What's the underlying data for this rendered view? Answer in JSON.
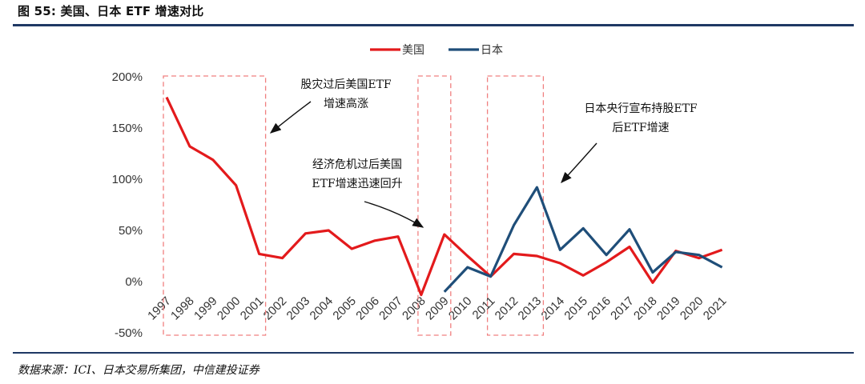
{
  "figure": {
    "title": "图 55: 美国、日本 ETF 增速对比",
    "source": "数据来源：ICI、日本交易所集团，中信建投证券"
  },
  "chart_data": {
    "type": "line",
    "title": "",
    "xlabel": "",
    "ylabel": "",
    "ylim": [
      -50,
      200
    ],
    "yticks": [
      "-50%",
      "0%",
      "50%",
      "100%",
      "150%",
      "200%"
    ],
    "ytick_values": [
      -50,
      0,
      50,
      100,
      150,
      200
    ],
    "grid": false,
    "legend_position": "top-center",
    "categories": [
      "1997",
      "1998",
      "1999",
      "2000",
      "2001",
      "2002",
      "2003",
      "2004",
      "2005",
      "2006",
      "2007",
      "2008",
      "2009",
      "2010",
      "2011",
      "2012",
      "2013",
      "2014",
      "2015",
      "2016",
      "2017",
      "2018",
      "2019",
      "2020",
      "2021"
    ],
    "series": [
      {
        "name": "美国",
        "color": "#e31a1c",
        "values": [
          180,
          132,
          119,
          94,
          27,
          23,
          47,
          50,
          32,
          40,
          44,
          -13,
          46,
          25,
          5,
          27,
          25,
          18,
          6,
          19,
          34,
          -1,
          30,
          23,
          31
        ]
      },
      {
        "name": "日本",
        "color": "#1f4e79",
        "values": [
          null,
          null,
          null,
          null,
          null,
          null,
          null,
          null,
          null,
          null,
          null,
          null,
          -10,
          14,
          5,
          55,
          92,
          31,
          52,
          26,
          51,
          9,
          29,
          26,
          14
        ]
      }
    ],
    "highlight_ranges": [
      {
        "from": "1997",
        "to": "2001",
        "y_range": [
          -50,
          200
        ]
      },
      {
        "from": "2008",
        "to": "2009",
        "y_range": [
          -50,
          200
        ]
      },
      {
        "from": "2011",
        "to": "2013",
        "y_range": [
          -50,
          200
        ]
      }
    ],
    "annotations": [
      {
        "lines": [
          "股灾过后美国ETF",
          "增速高涨"
        ]
      },
      {
        "lines": [
          "经济危机过后美国",
          "ETF增速迅速回升"
        ]
      },
      {
        "lines": [
          "日本央行宣布持股ETF",
          "后ETF增速"
        ]
      }
    ]
  }
}
